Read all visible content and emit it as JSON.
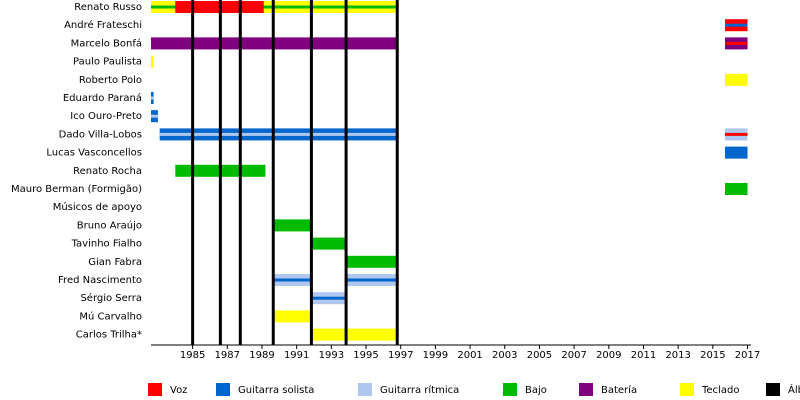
{
  "chart_data": {
    "type": "timeline",
    "xlim": [
      1982.6,
      2017.2
    ],
    "xticks": [
      1985,
      1987,
      1989,
      1991,
      1993,
      1995,
      1997,
      1999,
      2001,
      2003,
      2005,
      2007,
      2009,
      2011,
      2013,
      2015,
      2017
    ],
    "roles": [
      {
        "name": "Voz",
        "color": "#ff0000"
      },
      {
        "name": "Guitarra solista",
        "color": "#0066cc"
      },
      {
        "name": "Guitarra rítmica",
        "color": "#b0c8f0"
      },
      {
        "name": "Bajo",
        "color": "#00bb00"
      },
      {
        "name": "Batería",
        "color": "#800080"
      },
      {
        "name": "Teclado",
        "color": "#ffff00"
      },
      {
        "name": "Álbumes",
        "color": "#000000"
      }
    ],
    "album_role": 6,
    "albums": [
      1985,
      1986.6,
      1987.75,
      1989.65,
      1991.85,
      1993.85,
      1996.8
    ],
    "members": [
      {
        "name": "Renato Russo",
        "segments": [
          {
            "start": 1982.6,
            "end": 1996.8,
            "role": 5,
            "stripe": 3
          },
          {
            "start": 1984,
            "end": 1989.1,
            "role": 0
          }
        ]
      },
      {
        "name": "André Frateschi",
        "segments": [
          {
            "start": 2015.7,
            "end": 2017,
            "role": 0,
            "stripe": 1
          }
        ]
      },
      {
        "name": "Marcelo Bonfá",
        "segments": [
          {
            "start": 1982.6,
            "end": 1996.8,
            "role": 4
          },
          {
            "start": 2015.7,
            "end": 2017,
            "role": 4,
            "stripe": 0
          }
        ]
      },
      {
        "name": "Paulo Paulista",
        "segments": [
          {
            "start": 1982.6,
            "end": 1982.75,
            "role": 5
          }
        ]
      },
      {
        "name": "Roberto Polo",
        "segments": [
          {
            "start": 2015.7,
            "end": 2017,
            "role": 5
          }
        ]
      },
      {
        "name": "Eduardo Paraná",
        "segments": [
          {
            "start": 1982.6,
            "end": 1982.75,
            "role": 1,
            "stripe": 2
          }
        ]
      },
      {
        "name": "Ico Ouro-Preto",
        "segments": [
          {
            "start": 1982.6,
            "end": 1983,
            "role": 1,
            "stripe": 2
          }
        ]
      },
      {
        "name": "Dado Villa-Lobos",
        "segments": [
          {
            "start": 1983.1,
            "end": 1996.8,
            "role": 1,
            "stripe": 2
          },
          {
            "start": 2015.7,
            "end": 2017,
            "role": 2,
            "stripe": 0
          }
        ]
      },
      {
        "name": "Lucas Vasconcellos",
        "segments": [
          {
            "start": 2015.7,
            "end": 2017,
            "role": 1
          }
        ]
      },
      {
        "name": "Renato Rocha",
        "segments": [
          {
            "start": 1984,
            "end": 1989.2,
            "role": 3
          }
        ]
      },
      {
        "name": "Mauro Berman (Formigão)",
        "segments": [
          {
            "start": 2015.7,
            "end": 2017,
            "role": 3
          }
        ]
      },
      {
        "name": "Músicos de apoyo",
        "segments": []
      },
      {
        "name": "Bruno Araújo",
        "segments": [
          {
            "start": 1989.65,
            "end": 1991.85,
            "role": 3
          }
        ]
      },
      {
        "name": "Tavinho Fialho",
        "segments": [
          {
            "start": 1991.85,
            "end": 1993.85,
            "role": 3
          }
        ]
      },
      {
        "name": "Gian Fabra",
        "segments": [
          {
            "start": 1993.85,
            "end": 1996.8,
            "role": 3
          }
        ]
      },
      {
        "name": "Fred Nascimento",
        "segments": [
          {
            "start": 1989.65,
            "end": 1991.85,
            "role": 2,
            "stripe": 1
          },
          {
            "start": 1993.85,
            "end": 1996.8,
            "role": 2,
            "stripe": 1
          }
        ]
      },
      {
        "name": "Sérgio Serra",
        "segments": [
          {
            "start": 1991.85,
            "end": 1993.85,
            "role": 2,
            "stripe": 1
          }
        ]
      },
      {
        "name": "Mú Carvalho",
        "segments": [
          {
            "start": 1989.65,
            "end": 1991.85,
            "role": 5
          }
        ]
      },
      {
        "name": "Carlos Trilha*",
        "segments": [
          {
            "start": 1991.85,
            "end": 1996.8,
            "role": 5
          }
        ]
      }
    ]
  }
}
